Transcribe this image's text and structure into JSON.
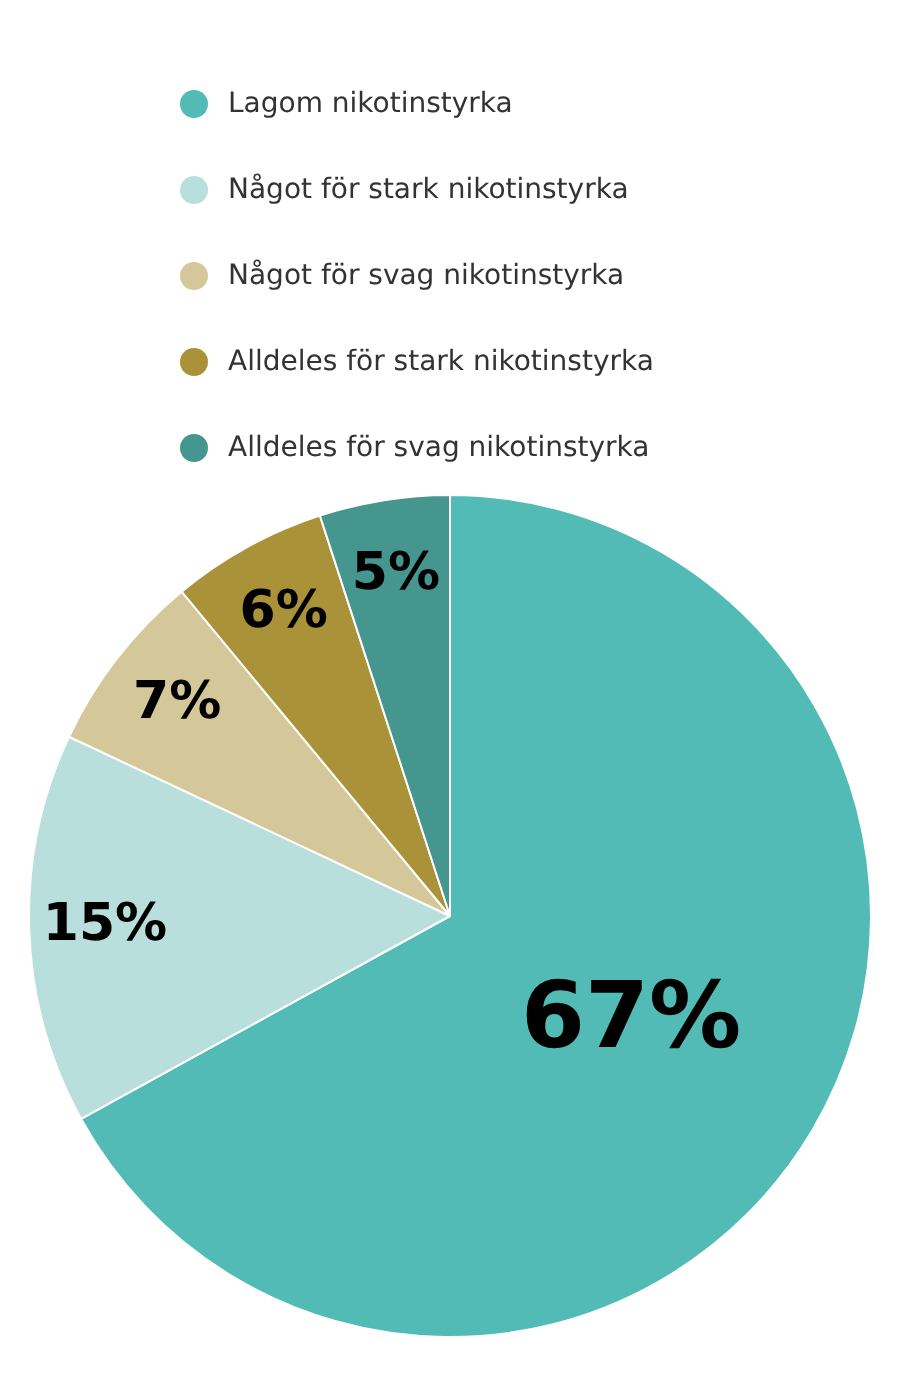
{
  "chart_data": {
    "type": "pie",
    "categories": [
      "Lagom nikotinstyrka",
      "Något för stark nikotinstyrka",
      "Något för svag nikotinstyrka",
      "Alldeles för stark nikotinstyrka",
      "Alldeles för svag nikotinstyrka"
    ],
    "values": [
      67,
      15,
      7,
      6,
      5
    ],
    "colors": [
      "#52bbb6",
      "#b8dfdc",
      "#d4c79a",
      "#a99238",
      "#45968f"
    ],
    "value_labels": [
      "67%",
      "15%",
      "7%",
      "6%",
      "5%"
    ],
    "legend": "top"
  }
}
